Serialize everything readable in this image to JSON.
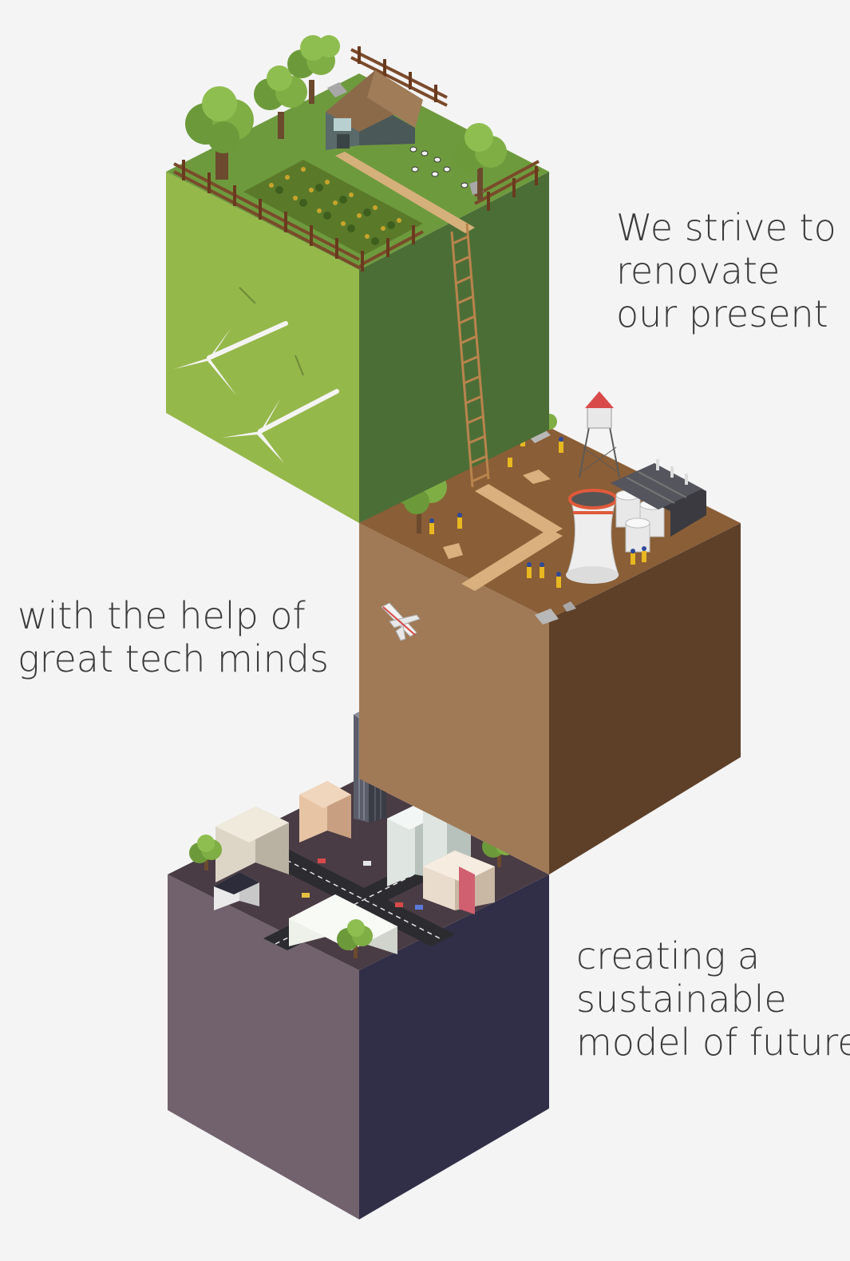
{
  "captions": {
    "top": {
      "line1": "We strive to",
      "line2": "renovate",
      "line3": "our present"
    },
    "middle": {
      "line1": "with the help of",
      "line2": "great tech minds"
    },
    "bottom": {
      "line1": "creating a",
      "line2": "sustainable",
      "line3": "model of future."
    }
  },
  "colors": {
    "background": "#f4f4f4",
    "farm_top": "#6e9a3e",
    "farm_left": "#95b84a",
    "farm_right": "#4b6e36",
    "industry_top": "#8a5e36",
    "industry_left": "#a07a56",
    "industry_right": "#5e4029",
    "city_top": "#4a3c44",
    "city_left": "#71626e",
    "city_right": "#312f47",
    "text": "#3a3a3a"
  },
  "icons": [
    "tree-icon",
    "barn-icon",
    "fence-icon",
    "crop-field-icon",
    "sheep-icon",
    "ladder-icon",
    "wind-turbine-icon",
    "water-tower-icon",
    "cooling-tower-icon",
    "storage-tank-icon",
    "factory-icon",
    "worker-icon",
    "airplane-icon",
    "skyscraper-icon",
    "building-icon",
    "road-icon",
    "car-icon"
  ]
}
